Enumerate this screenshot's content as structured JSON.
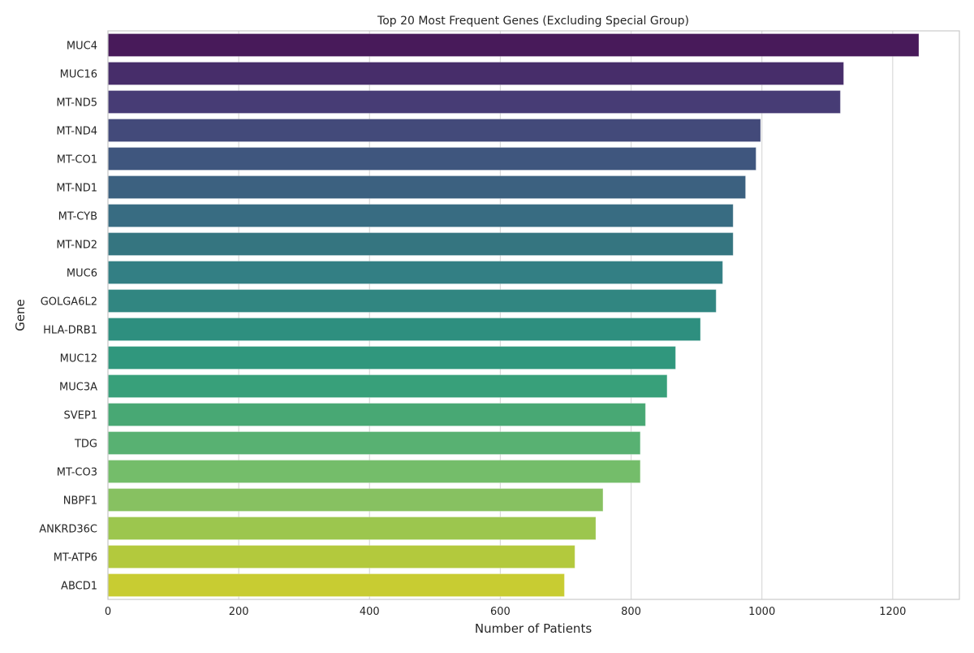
{
  "chart_data": {
    "type": "bar",
    "orientation": "horizontal",
    "title": "Top 20 Most Frequent Genes (Excluding Special Group)",
    "xlabel": "Number of Patients",
    "ylabel": "Gene",
    "xlim": [
      0,
      1302
    ],
    "xticks": [
      0,
      200,
      400,
      600,
      800,
      1000,
      1200
    ],
    "grid": true,
    "palette": "viridis",
    "categories": [
      "MUC4",
      "MUC16",
      "MT-ND5",
      "MT-ND4",
      "MT-CO1",
      "MT-ND1",
      "MT-CYB",
      "MT-ND2",
      "MUC6",
      "GOLGA6L2",
      "HLA-DRB1",
      "MUC12",
      "MUC3A",
      "SVEP1",
      "TDG",
      "MT-CO3",
      "NBPF1",
      "ANKRD36C",
      "MT-ATP6",
      "ABCD1"
    ],
    "values": [
      1240,
      1125,
      1120,
      998,
      991,
      975,
      956,
      956,
      940,
      930,
      906,
      868,
      855,
      822,
      814,
      814,
      757,
      746,
      714,
      698
    ],
    "colors": [
      "#481a5a",
      "#472d6a",
      "#473c75",
      "#434a7a",
      "#3f567e",
      "#3c6180",
      "#386c82",
      "#357580",
      "#337f84",
      "#318681",
      "#2e8f7f",
      "#30977d",
      "#38a07a",
      "#48a874",
      "#58b172",
      "#74bd6a",
      "#87c161",
      "#9cc64e",
      "#b3c93d",
      "#c8cc32"
    ]
  }
}
